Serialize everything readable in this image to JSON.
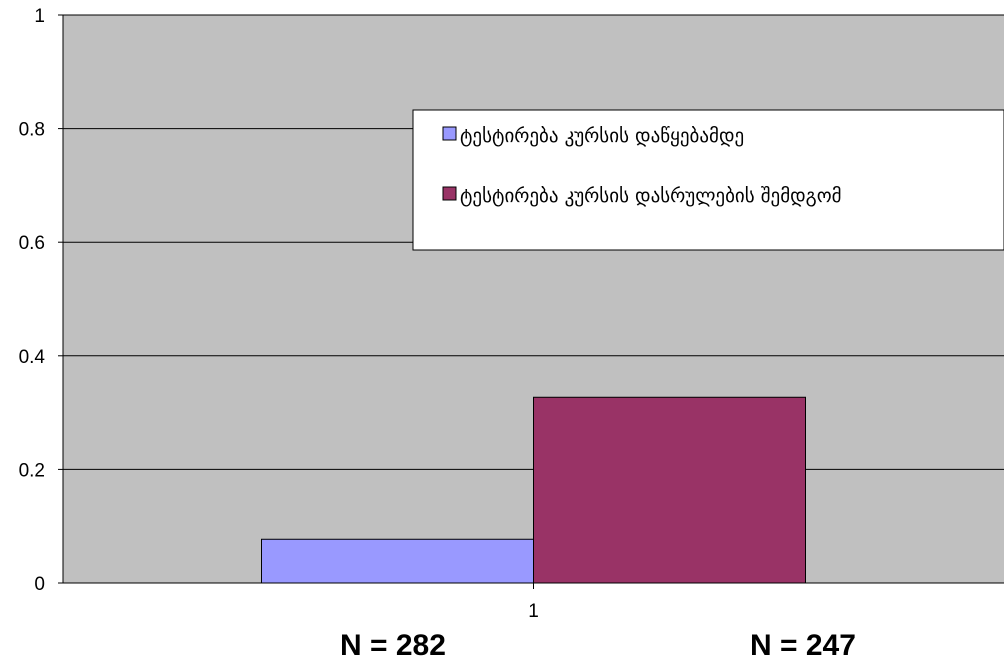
{
  "chart_data": {
    "type": "bar",
    "categories": [
      "1"
    ],
    "series": [
      {
        "name": "ტესტირება კურსის დაწყებამდე",
        "values": [
          0.077
        ],
        "color": "#9999ff"
      },
      {
        "name": "ტესტირება კურსის დასრულების შემდგომ",
        "values": [
          0.327
        ],
        "color": "#993366"
      }
    ],
    "ylim": [
      0,
      1
    ],
    "yticks": [
      0,
      0.2,
      0.4,
      0.6,
      0.8,
      1
    ],
    "ytick_labels": [
      "0",
      "0.2",
      "0.4",
      "0.6",
      "0.8",
      "1"
    ],
    "grid": true,
    "legend_position": "right",
    "plot_background": "#c0c0c0",
    "annotations": [
      "N = 282",
      "N = 247"
    ]
  }
}
